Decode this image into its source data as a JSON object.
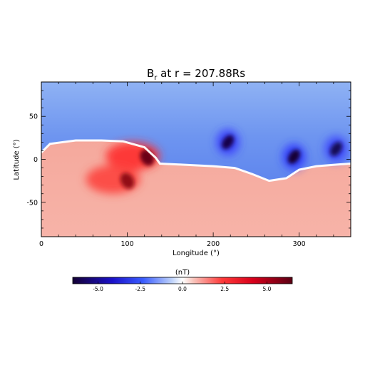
{
  "chart_data": [
    {
      "type": "heatmap",
      "title": "B",
      "title_sub": "r",
      "title_rest": " at r = 207.88Rs",
      "xlabel": "Longitude (°)",
      "ylabel": "Latitude (°)",
      "xlim": [
        0,
        360
      ],
      "ylim": [
        -90,
        90
      ],
      "xticks": [
        0,
        100,
        200,
        300
      ],
      "yticks": [
        -50,
        0,
        50
      ],
      "value_range": [
        -6.5,
        6.5
      ],
      "field_description": "Sheet: latitude about +10° (lon 0–130) dipping to about -15° near lon 260 and back to about -5° at lon 360; positive (red) south of sheet, negative (blue) north.",
      "features": [
        {
          "kind": "sheet",
          "points": [
            [
              0,
              8
            ],
            [
              10,
              18
            ],
            [
              40,
              22
            ],
            [
              70,
              22
            ],
            [
              95,
              21
            ],
            [
              120,
              14
            ],
            [
              133,
              2
            ],
            [
              138,
              -5
            ],
            [
              160,
              -6
            ],
            [
              200,
              -8
            ],
            [
              225,
              -10
            ],
            [
              245,
              -17
            ],
            [
              265,
              -25
            ],
            [
              285,
              -22
            ],
            [
              300,
              -12
            ],
            [
              320,
              -8
            ],
            [
              345,
              -6
            ],
            [
              360,
              -5
            ]
          ]
        },
        {
          "kind": "strong_positive",
          "lon": 123,
          "lat": 2,
          "value": 6.2
        },
        {
          "kind": "strong_positive",
          "lon": 100,
          "lat": -25,
          "value": 5.5
        },
        {
          "kind": "strong_negative",
          "lon": 217,
          "lat": 20,
          "value": -6.2
        },
        {
          "kind": "strong_negative",
          "lon": 294,
          "lat": 3,
          "value": -6.5
        },
        {
          "kind": "strong_negative",
          "lon": 343,
          "lat": 12,
          "value": -6.0
        }
      ]
    },
    {
      "type": "colorbar",
      "label": "(nT)",
      "range": [
        -6.5,
        6.5
      ],
      "ticks": [
        -5.0,
        -2.5,
        0.0,
        2.5,
        5.0
      ],
      "tick_labels": [
        "-5.0",
        "-2.5",
        "0.0",
        "2.5",
        "5.0"
      ],
      "colors": {
        "min": "#140034",
        "neg_mid": "#2f33ff",
        "neg_light": "#a9bff4",
        "zero": "#ffffff",
        "pos_light": "#f6b0a6",
        "pos_mid": "#ff2424",
        "max": "#5a0014"
      }
    }
  ]
}
